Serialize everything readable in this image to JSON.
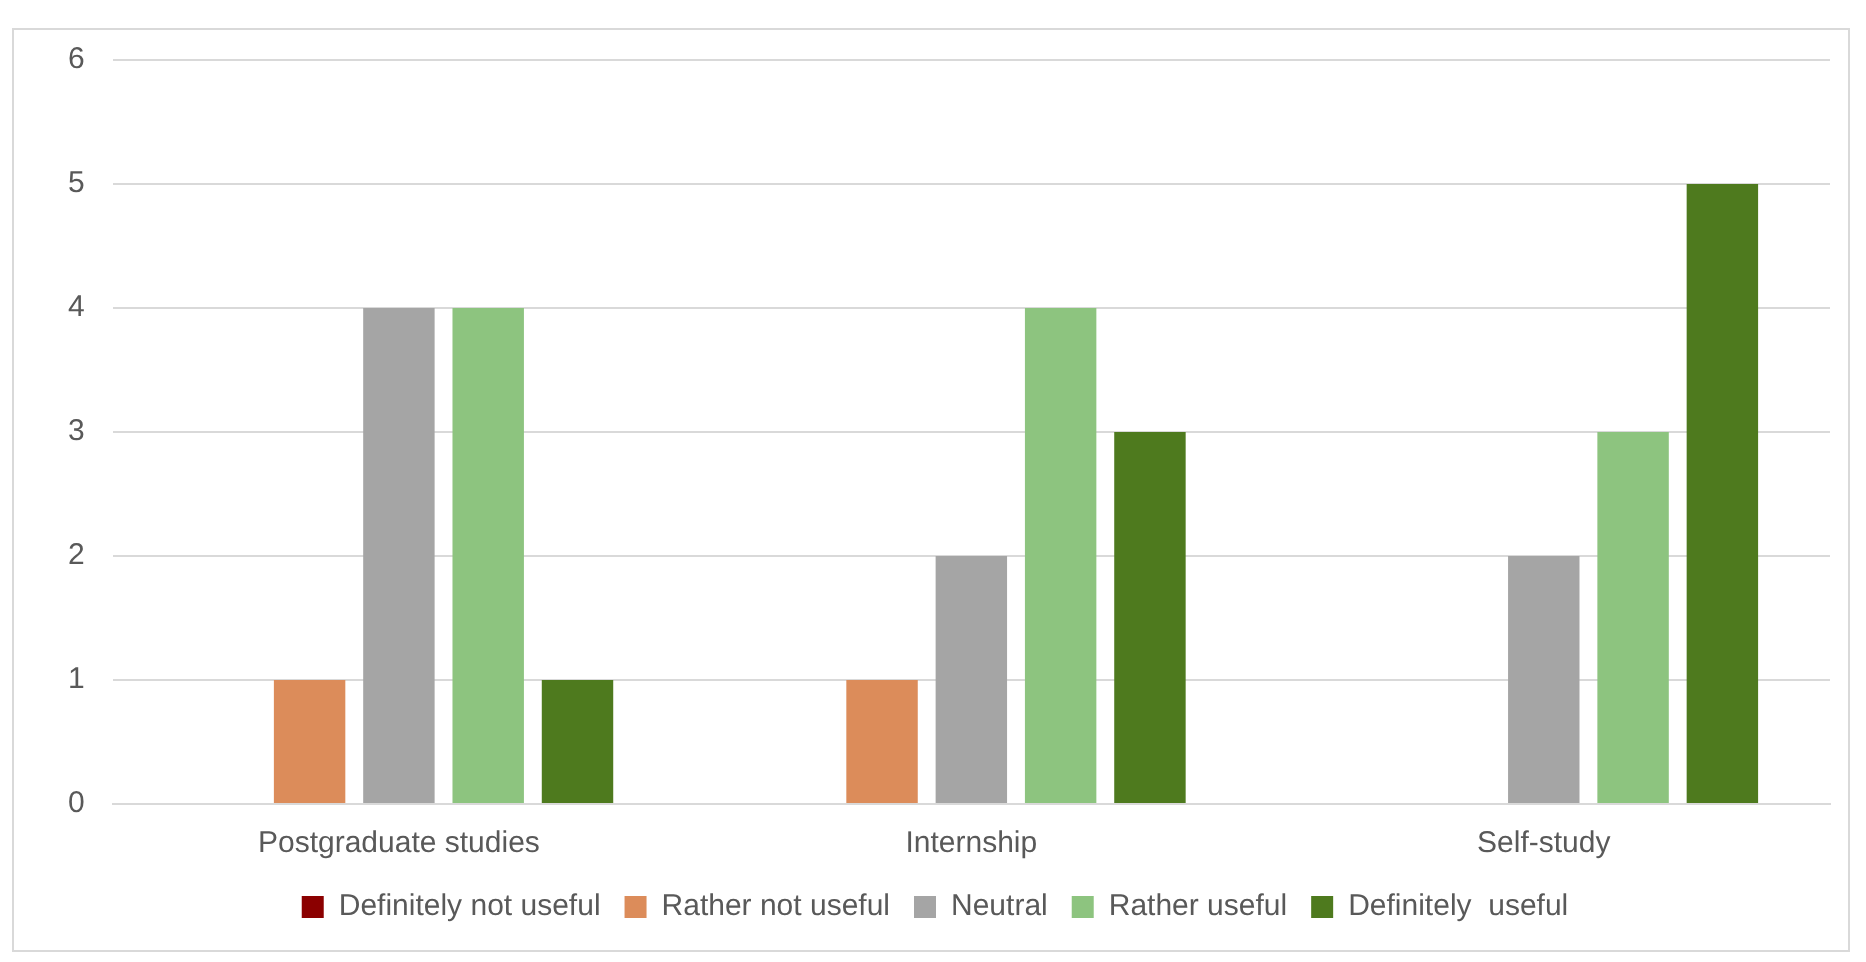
{
  "chart_data": {
    "type": "bar",
    "categories": [
      "Postgraduate studies",
      "Internship",
      "Self-study"
    ],
    "series": [
      {
        "name": "Definitely not useful",
        "color": "#8b0000",
        "values": [
          0,
          0,
          0
        ]
      },
      {
        "name": "Rather not useful",
        "color": "#dc8c5a",
        "values": [
          1,
          1,
          0
        ]
      },
      {
        "name": "Neutral",
        "color": "#a5a5a5",
        "values": [
          4,
          2,
          2
        ]
      },
      {
        "name": "Rather useful",
        "color": "#8dc47f",
        "values": [
          4,
          4,
          3
        ]
      },
      {
        "name": "Definitely  useful",
        "color": "#4e7a1e",
        "values": [
          1,
          3,
          5
        ]
      }
    ],
    "ylim": [
      0,
      6
    ],
    "yticks": [
      0,
      1,
      2,
      3,
      4,
      5,
      6
    ],
    "grid": "y",
    "legend": "bottom"
  }
}
